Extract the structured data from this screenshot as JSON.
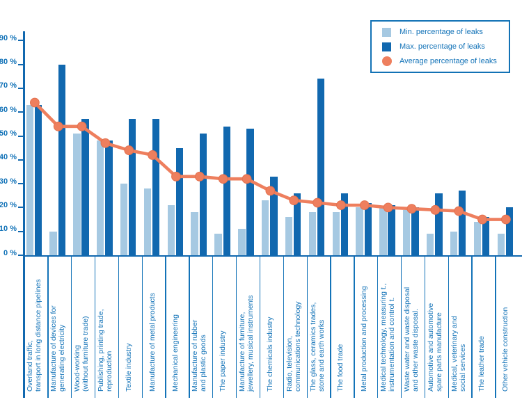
{
  "chart_data": {
    "type": "bar",
    "title": "",
    "xlabel": "",
    "ylabel": "",
    "ylim": [
      0,
      90
    ],
    "yticks": [
      90,
      80,
      70,
      60,
      50,
      40,
      30,
      20,
      10,
      0
    ],
    "ytick_suffix": " %",
    "grid": false,
    "legend_position": "top-right",
    "categories": [
      [
        "Overland traffic,",
        "transport in long distance pipelines"
      ],
      [
        "Manufacture of devices for",
        "generating electricity"
      ],
      [
        "Wood-working",
        "(without furniture trade)"
      ],
      [
        "Publishing, printing trade,",
        "reproduction"
      ],
      [
        "Textile industry"
      ],
      [
        "Manufacture of metal products"
      ],
      [
        "Mechanical engineering"
      ],
      [
        "Manufacture of rubber",
        "and plastic goods"
      ],
      [
        "The paper industry"
      ],
      [
        "Manufacture of furniture,",
        "jewellery, musical instruments"
      ],
      [
        "The chemicals industry"
      ],
      [
        "Radio, television,",
        "communications technology"
      ],
      [
        "The glass, ceramics trades,",
        "stone and earth works"
      ],
      [
        "The food trade"
      ],
      [
        "Metal production and processing"
      ],
      [
        "Medical technology, measuring t.,",
        "instrumentation and control t."
      ],
      [
        "Waste water and waste disposal",
        "and other waste disposal."
      ],
      [
        "Automotive and automotive",
        "spare parts manufacture"
      ],
      [
        "Medical, veterinary and",
        "social services"
      ],
      [
        "The leather trade"
      ],
      [
        "Other vehicle construction"
      ]
    ],
    "series": [
      {
        "name": "Min. percentage of leaks",
        "kind": "bar",
        "color": "#a6c9e2",
        "values": [
          63,
          10,
          51,
          48,
          30,
          28,
          21,
          18,
          9,
          11,
          23,
          16,
          18,
          18,
          20,
          20,
          19,
          9,
          10,
          14,
          9
        ]
      },
      {
        "name": "Max. percentage of leaks",
        "kind": "bar",
        "color": "#1168af",
        "values": [
          63,
          80,
          57,
          48,
          57,
          57,
          45,
          51,
          54,
          53,
          33,
          26,
          74,
          26,
          22,
          21,
          20,
          26,
          27,
          16,
          20
        ]
      },
      {
        "name": "Average percentage of leaks",
        "kind": "line",
        "color": "#ee7f5e",
        "values": [
          64,
          54,
          54,
          47,
          44,
          42,
          33,
          33,
          32,
          32,
          27,
          23,
          22,
          21,
          21,
          20,
          19.5,
          19,
          18.5,
          15,
          15
        ]
      }
    ]
  },
  "colors": {
    "background": "#ffffff",
    "axis": "#1168af",
    "text": "#1373b8",
    "min_bar": "#a6c9e2",
    "max_bar": "#1168af",
    "average_line": "#ee7f5e",
    "legend_border": "#1272b5"
  }
}
